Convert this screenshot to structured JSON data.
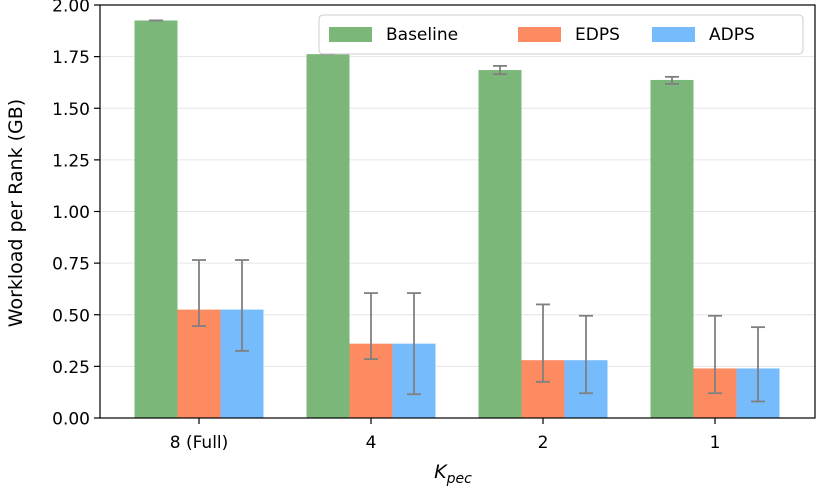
{
  "chart_data": {
    "type": "bar",
    "categories": [
      "8 (Full)",
      "4",
      "2",
      "1"
    ],
    "series": [
      {
        "name": "Baseline",
        "color": "#7cb77a",
        "values": [
          1.925,
          1.762,
          1.685,
          1.637
        ],
        "err_low": [
          1.925,
          1.762,
          1.665,
          1.618
        ],
        "err_high": [
          1.925,
          1.762,
          1.705,
          1.652
        ]
      },
      {
        "name": "EDPS",
        "color": "#fd8b61",
        "values": [
          0.525,
          0.36,
          0.28,
          0.24
        ],
        "err_low": [
          0.445,
          0.285,
          0.175,
          0.12
        ],
        "err_high": [
          0.765,
          0.605,
          0.55,
          0.495
        ]
      },
      {
        "name": "ADPS",
        "color": "#76bcfd",
        "values": [
          0.525,
          0.36,
          0.28,
          0.24
        ],
        "err_low": [
          0.325,
          0.115,
          0.12,
          0.08
        ],
        "err_high": [
          0.765,
          0.605,
          0.495,
          0.44
        ]
      }
    ],
    "ylim": [
      0,
      2.0
    ],
    "yticks": [
      "0.00",
      "0.25",
      "0.50",
      "0.75",
      "1.00",
      "1.25",
      "1.50",
      "1.75",
      "2.00"
    ],
    "ylabel": "Workload per Rank (GB)",
    "xlabel": "K",
    "xlabel_subscript": "pec",
    "grid": "horizontal",
    "legend": "top-right"
  }
}
